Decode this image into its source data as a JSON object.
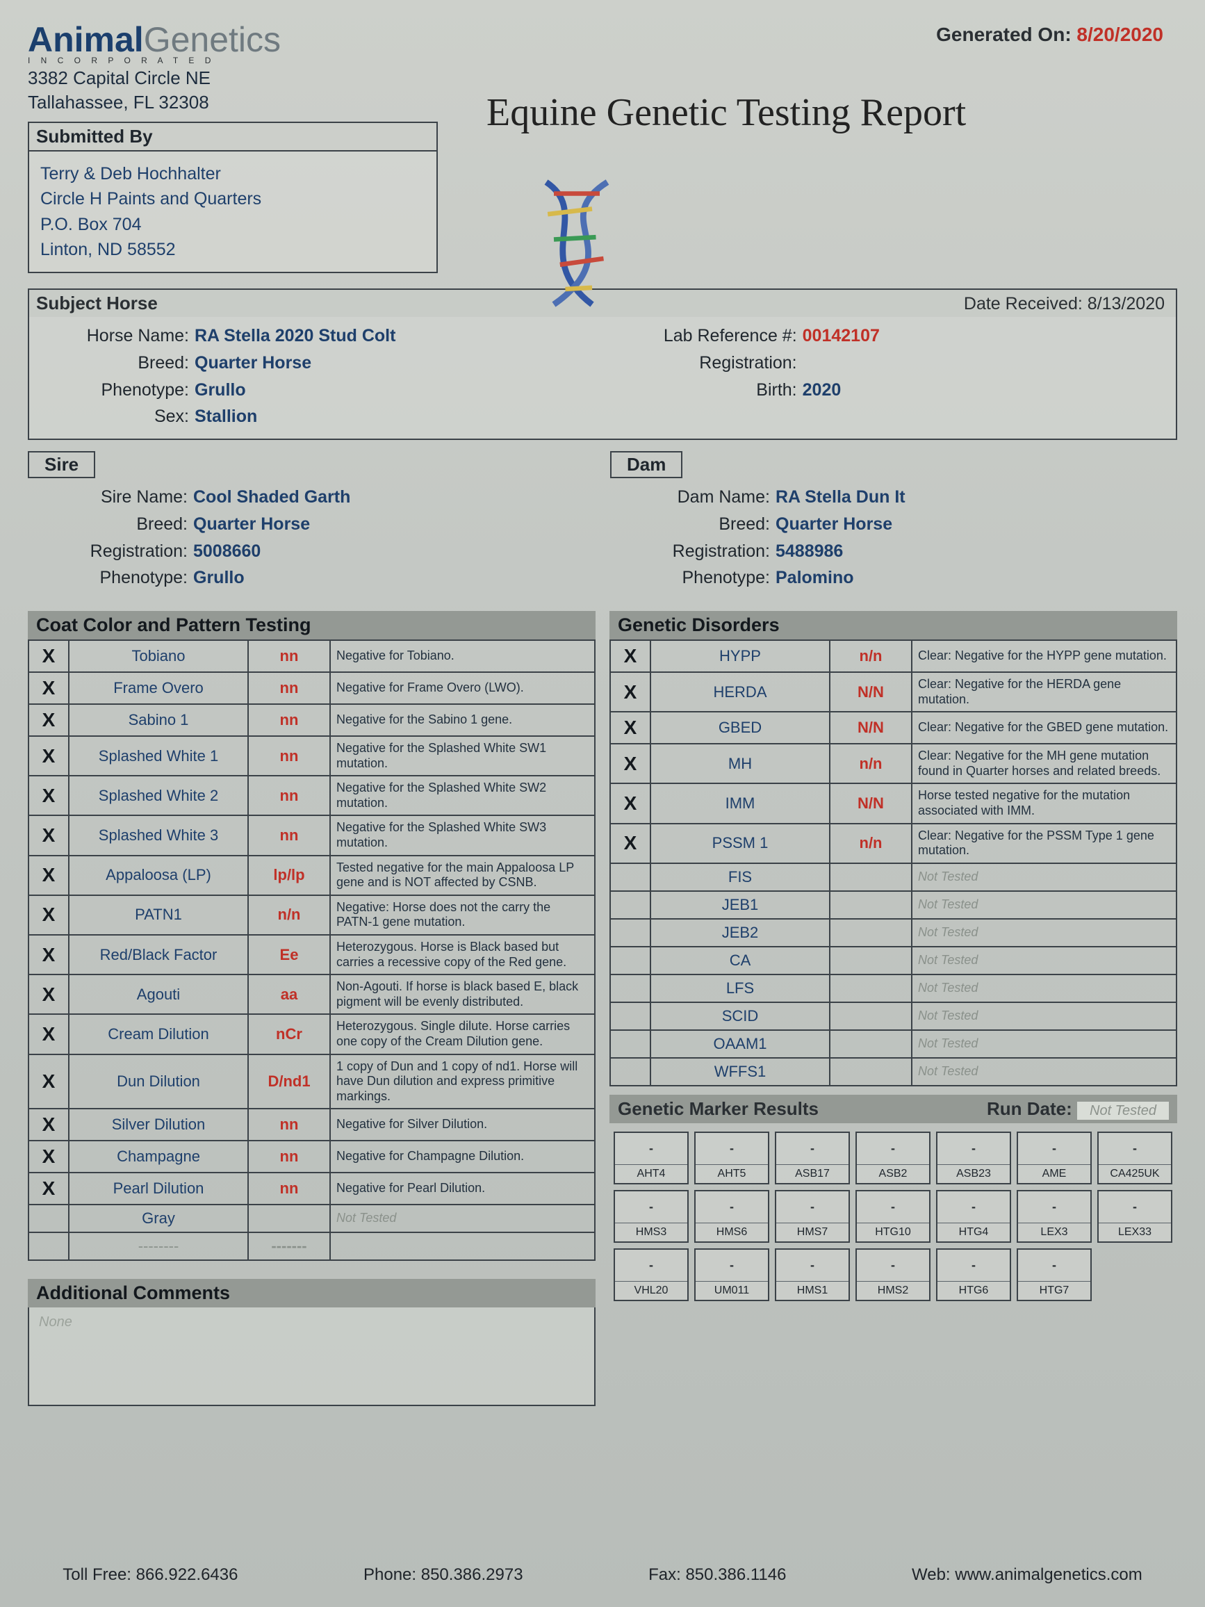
{
  "company": {
    "logo_bold": "Animal",
    "logo_light": "Genetics",
    "incorporated": "I N C O R P O R A T E D",
    "address_line1": "3382 Capital Circle NE",
    "address_line2": "Tallahassee, FL 32308"
  },
  "header": {
    "generated_label": "Generated On:",
    "generated_date": "8/20/2020",
    "report_title": "Equine Genetic Testing Report"
  },
  "submitted": {
    "heading": "Submitted By",
    "line1": "Terry & Deb Hochhalter",
    "line2": "Circle H Paints and Quarters",
    "line3": "P.O. Box 704",
    "line4": "Linton,  ND 58552"
  },
  "subject": {
    "heading": "Subject Horse",
    "date_received_label": "Date Received:",
    "date_received": "8/13/2020",
    "left": {
      "horse_name_label": "Horse Name:",
      "horse_name": "RA Stella 2020 Stud Colt",
      "breed_label": "Breed:",
      "breed": "Quarter Horse",
      "phenotype_label": "Phenotype:",
      "phenotype": "Grullo",
      "sex_label": "Sex:",
      "sex": "Stallion"
    },
    "right": {
      "labref_label": "Lab Reference #:",
      "labref": "00142107",
      "registration_label": "Registration:",
      "registration": "",
      "birth_label": "Birth:",
      "birth": "2020"
    }
  },
  "sire": {
    "heading": "Sire",
    "name_label": "Sire Name:",
    "name": "Cool Shaded Garth",
    "breed_label": "Breed:",
    "breed": "Quarter Horse",
    "reg_label": "Registration:",
    "reg": "5008660",
    "phen_label": "Phenotype:",
    "phen": "Grullo"
  },
  "dam": {
    "heading": "Dam",
    "name_label": "Dam Name:",
    "name": "RA Stella Dun It",
    "breed_label": "Breed:",
    "breed": "Quarter Horse",
    "reg_label": "Registration:",
    "reg": "5488986",
    "phen_label": "Phenotype:",
    "phen": "Palomino"
  },
  "coat": {
    "heading": "Coat Color and Pattern Testing",
    "rows": [
      {
        "x": "X",
        "name": "Tobiano",
        "res": "nn",
        "desc": "Negative for Tobiano."
      },
      {
        "x": "X",
        "name": "Frame Overo",
        "res": "nn",
        "desc": "Negative for Frame Overo (LWO)."
      },
      {
        "x": "X",
        "name": "Sabino 1",
        "res": "nn",
        "desc": "Negative for the Sabino 1 gene."
      },
      {
        "x": "X",
        "name": "Splashed White 1",
        "res": "nn",
        "desc": "Negative for the Splashed White SW1 mutation."
      },
      {
        "x": "X",
        "name": "Splashed White 2",
        "res": "nn",
        "desc": "Negative for the Splashed White SW2 mutation."
      },
      {
        "x": "X",
        "name": "Splashed White 3",
        "res": "nn",
        "desc": "Negative for the Splashed White SW3 mutation."
      },
      {
        "x": "X",
        "name": "Appaloosa (LP)",
        "res": "lp/lp",
        "desc": "Tested negative for the main Appaloosa LP gene and is NOT affected by CSNB."
      },
      {
        "x": "X",
        "name": "PATN1",
        "res": "n/n",
        "desc": "Negative: Horse does not the carry the PATN-1 gene mutation."
      },
      {
        "x": "X",
        "name": "Red/Black Factor",
        "res": "Ee",
        "desc": "Heterozygous. Horse is Black based but carries a recessive copy of the Red gene."
      },
      {
        "x": "X",
        "name": "Agouti",
        "res": "aa",
        "desc": "Non-Agouti. If horse is black based E, black pigment will be evenly distributed."
      },
      {
        "x": "X",
        "name": "Cream Dilution",
        "res": "nCr",
        "desc": "Heterozygous. Single dilute. Horse carries one copy of the Cream Dilution gene."
      },
      {
        "x": "X",
        "name": "Dun Dilution",
        "res": "D/nd1",
        "desc": "1 copy of Dun and 1 copy of nd1. Horse will have Dun dilution and express primitive markings."
      },
      {
        "x": "X",
        "name": "Silver Dilution",
        "res": "nn",
        "desc": "Negative for Silver Dilution."
      },
      {
        "x": "X",
        "name": "Champagne",
        "res": "nn",
        "desc": "Negative for Champagne Dilution."
      },
      {
        "x": "X",
        "name": "Pearl Dilution",
        "res": "nn",
        "desc": "Negative for Pearl Dilution."
      },
      {
        "x": "",
        "name": "Gray",
        "res": "",
        "desc": "Not Tested",
        "nt": true
      },
      {
        "x": "",
        "name": "--------",
        "res": "-------",
        "desc": "",
        "blank": true
      }
    ]
  },
  "disorders": {
    "heading": "Genetic Disorders",
    "rows": [
      {
        "x": "X",
        "name": "HYPP",
        "res": "n/n",
        "desc": "Clear: Negative for the HYPP gene mutation."
      },
      {
        "x": "X",
        "name": "HERDA",
        "res": "N/N",
        "desc": "Clear: Negative for the HERDA gene mutation."
      },
      {
        "x": "X",
        "name": "GBED",
        "res": "N/N",
        "desc": "Clear: Negative for the GBED gene mutation."
      },
      {
        "x": "X",
        "name": "MH",
        "res": "n/n",
        "desc": "Clear: Negative for the MH gene mutation found in Quarter horses and related breeds."
      },
      {
        "x": "X",
        "name": "IMM",
        "res": "N/N",
        "desc": "Horse tested negative for the mutation associated with IMM."
      },
      {
        "x": "X",
        "name": "PSSM 1",
        "res": "n/n",
        "desc": "Clear: Negative for the PSSM Type 1 gene mutation."
      },
      {
        "x": "",
        "name": "FIS",
        "res": "",
        "desc": "Not Tested",
        "nt": true
      },
      {
        "x": "",
        "name": "JEB1",
        "res": "",
        "desc": "Not Tested",
        "nt": true
      },
      {
        "x": "",
        "name": "JEB2",
        "res": "",
        "desc": "Not Tested",
        "nt": true
      },
      {
        "x": "",
        "name": "CA",
        "res": "",
        "desc": "Not Tested",
        "nt": true
      },
      {
        "x": "",
        "name": "LFS",
        "res": "",
        "desc": "Not Tested",
        "nt": true
      },
      {
        "x": "",
        "name": "SCID",
        "res": "",
        "desc": "Not Tested",
        "nt": true
      },
      {
        "x": "",
        "name": "OAAM1",
        "res": "",
        "desc": "Not Tested",
        "nt": true
      },
      {
        "x": "",
        "name": "WFFS1",
        "res": "",
        "desc": "Not Tested",
        "nt": true
      }
    ]
  },
  "markers": {
    "heading": "Genetic Marker Results",
    "run_date_label": "Run Date:",
    "run_date_value": "Not Tested",
    "cells": [
      "AHT4",
      "AHT5",
      "ASB17",
      "ASB2",
      "ASB23",
      "AME",
      "CA425UK",
      "HMS3",
      "HMS6",
      "HMS7",
      "HTG10",
      "HTG4",
      "LEX3",
      "LEX33",
      "VHL20",
      "UM011",
      "HMS1",
      "HMS2",
      "HTG6",
      "HTG7"
    ]
  },
  "additional": {
    "heading": "Additional Comments",
    "body": "None"
  },
  "footer": {
    "tollfree_label": "Toll Free:",
    "tollfree": "866.922.6436",
    "phone_label": "Phone:",
    "phone": "850.386.2973",
    "fax_label": "Fax:",
    "fax": "850.386.1146",
    "web_label": "Web:",
    "web": "www.animalgenetics.com"
  },
  "colors": {
    "accent_blue": "#1e3f6b",
    "accent_red": "#c03027",
    "band_gray": "#949994"
  }
}
